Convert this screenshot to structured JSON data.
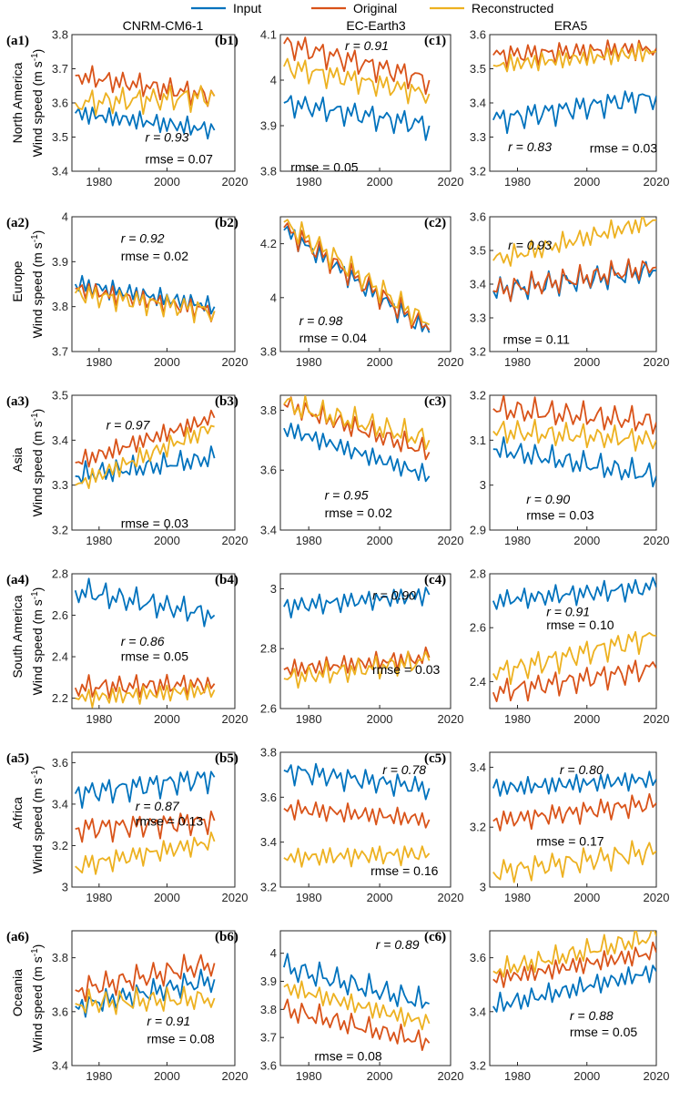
{
  "legend": {
    "items": [
      {
        "name": "Input",
        "color": "#0072BD"
      },
      {
        "name": "Original",
        "color": "#D95319"
      },
      {
        "name": "Reconstructed",
        "color": "#EDB120"
      }
    ]
  },
  "columns": [
    "CNRM-CM6-1",
    "EC-Earth3",
    "ERA5"
  ],
  "rows": [
    "North America",
    "Europe",
    "Asia",
    "South America",
    "Africa",
    "Oceania"
  ],
  "ylabel": "Wind speed (m s",
  "ylabel_sup": "-1",
  "ylabel_close": ")",
  "chart_data": [
    {
      "id": "a1",
      "label": "(a1)",
      "type": "line",
      "xlim": [
        1972,
        2020
      ],
      "ylim": [
        3.4,
        3.8
      ],
      "yticks": [
        "3.4",
        "3.5",
        "3.6",
        "3.7",
        "3.8"
      ],
      "xticks": [
        "1980",
        "2000",
        "2020"
      ],
      "r_text": "r = 0.93",
      "rmse_text": "rmse = 0.07",
      "x": [
        1973,
        2014
      ],
      "series": [
        {
          "name": "Input",
          "values": [
            3.57,
            3.52
          ]
        },
        {
          "name": "Original",
          "values": [
            3.68,
            3.62
          ]
        },
        {
          "name": "Reconstructed",
          "values": [
            3.6,
            3.62
          ]
        }
      ]
    },
    {
      "id": "b1",
      "label": "(b1)",
      "type": "line",
      "xlim": [
        1972,
        2020
      ],
      "ylim": [
        3.8,
        4.1
      ],
      "yticks": [
        "3.8",
        "3.9",
        "4",
        "4.1"
      ],
      "xticks": [
        "1980",
        "2000",
        "2020"
      ],
      "r_text": "r = 0.91",
      "rmse_text": "rmse = 0.05",
      "x": [
        1973,
        2014
      ],
      "series": [
        {
          "name": "Input",
          "values": [
            3.95,
            3.9
          ]
        },
        {
          "name": "Original",
          "values": [
            4.08,
            4.0
          ]
        },
        {
          "name": "Reconstructed",
          "values": [
            4.03,
            3.97
          ]
        }
      ]
    },
    {
      "id": "c1",
      "label": "(c1)",
      "type": "line",
      "xlim": [
        1972,
        2020
      ],
      "ylim": [
        3.2,
        3.6
      ],
      "yticks": [
        "3.2",
        "3.3",
        "3.4",
        "3.5",
        "3.6"
      ],
      "xticks": [
        "1980",
        "2000",
        "2020"
      ],
      "r_text": "r = 0.83",
      "rmse_text": "rmse = 0.03",
      "x": [
        1973,
        2020
      ],
      "series": [
        {
          "name": "Input",
          "values": [
            3.35,
            3.42
          ]
        },
        {
          "name": "Original",
          "values": [
            3.54,
            3.56
          ]
        },
        {
          "name": "Reconstructed",
          "values": [
            3.51,
            3.55
          ]
        }
      ]
    },
    {
      "id": "a2",
      "label": "(a2)",
      "type": "line",
      "xlim": [
        1972,
        2020
      ],
      "ylim": [
        3.7,
        4.0
      ],
      "yticks": [
        "3.7",
        "3.8",
        "3.9",
        "4"
      ],
      "xticks": [
        "1980",
        "2000",
        "2020"
      ],
      "r_text": "r = 0.92",
      "rmse_text": "rmse = 0.02",
      "x": [
        1973,
        2014
      ],
      "series": [
        {
          "name": "Input",
          "values": [
            3.85,
            3.8
          ]
        },
        {
          "name": "Original",
          "values": [
            3.84,
            3.79
          ]
        },
        {
          "name": "Reconstructed",
          "values": [
            3.83,
            3.79
          ]
        }
      ]
    },
    {
      "id": "b2",
      "label": "(b2)",
      "type": "line",
      "xlim": [
        1972,
        2020
      ],
      "ylim": [
        3.8,
        4.3
      ],
      "yticks": [
        "3.8",
        "4",
        "4.2"
      ],
      "xticks": [
        "1980",
        "2000",
        "2020"
      ],
      "r_text": "r = 0.98",
      "rmse_text": "rmse = 0.04",
      "x": [
        1973,
        2014
      ],
      "series": [
        {
          "name": "Input",
          "values": [
            4.25,
            3.87
          ]
        },
        {
          "name": "Original",
          "values": [
            4.26,
            3.88
          ]
        },
        {
          "name": "Reconstructed",
          "values": [
            4.28,
            3.9
          ]
        }
      ]
    },
    {
      "id": "c2",
      "label": "(c2)",
      "type": "line",
      "xlim": [
        1972,
        2020
      ],
      "ylim": [
        3.2,
        3.6
      ],
      "yticks": [
        "3.2",
        "3.3",
        "3.4",
        "3.5",
        "3.6"
      ],
      "xticks": [
        "1980",
        "2000",
        "2020"
      ],
      "r_text": "r = 0.93",
      "rmse_text": "rmse = 0.11",
      "x": [
        1973,
        2020
      ],
      "series": [
        {
          "name": "Input",
          "values": [
            3.38,
            3.44
          ]
        },
        {
          "name": "Original",
          "values": [
            3.38,
            3.45
          ]
        },
        {
          "name": "Reconstructed",
          "values": [
            3.47,
            3.59
          ]
        }
      ]
    },
    {
      "id": "a3",
      "label": "(a3)",
      "type": "line",
      "xlim": [
        1972,
        2020
      ],
      "ylim": [
        3.2,
        3.5
      ],
      "yticks": [
        "3.2",
        "3.3",
        "3.4",
        "3.5"
      ],
      "xticks": [
        "1980",
        "2000",
        "2020"
      ],
      "r_text": "r = 0.97",
      "rmse_text": "rmse = 0.03",
      "x": [
        1973,
        2014
      ],
      "series": [
        {
          "name": "Input",
          "values": [
            3.32,
            3.36
          ]
        },
        {
          "name": "Original",
          "values": [
            3.35,
            3.45
          ]
        },
        {
          "name": "Reconstructed",
          "values": [
            3.3,
            3.43
          ]
        }
      ]
    },
    {
      "id": "b3",
      "label": "(b3)",
      "type": "line",
      "xlim": [
        1972,
        2020
      ],
      "ylim": [
        3.4,
        3.85
      ],
      "yticks": [
        "3.4",
        "3.6",
        "3.8"
      ],
      "xticks": [
        "1980",
        "2000",
        "2020"
      ],
      "r_text": "r = 0.95",
      "rmse_text": "rmse = 0.02",
      "x": [
        1973,
        2014
      ],
      "series": [
        {
          "name": "Input",
          "values": [
            3.74,
            3.58
          ]
        },
        {
          "name": "Original",
          "values": [
            3.82,
            3.66
          ]
        },
        {
          "name": "Reconstructed",
          "values": [
            3.82,
            3.7
          ]
        }
      ]
    },
    {
      "id": "c3",
      "label": "(c3)",
      "type": "line",
      "xlim": [
        1972,
        2020
      ],
      "ylim": [
        2.9,
        3.2
      ],
      "yticks": [
        "2.9",
        "3",
        "3.1",
        "3.2"
      ],
      "xticks": [
        "1980",
        "2000",
        "2020"
      ],
      "r_text": "r = 0.90",
      "rmse_text": "rmse = 0.03",
      "x": [
        1973,
        2020
      ],
      "series": [
        {
          "name": "Input",
          "values": [
            3.08,
            3.02
          ]
        },
        {
          "name": "Original",
          "values": [
            3.17,
            3.14
          ]
        },
        {
          "name": "Reconstructed",
          "values": [
            3.12,
            3.1
          ]
        }
      ]
    },
    {
      "id": "a4",
      "label": "(a4)",
      "type": "line",
      "xlim": [
        1972,
        2020
      ],
      "ylim": [
        2.15,
        2.8
      ],
      "yticks": [
        "2.2",
        "2.4",
        "2.6",
        "2.8"
      ],
      "xticks": [
        "1980",
        "2000",
        "2020"
      ],
      "r_text": "r = 0.86",
      "rmse_text": "rmse = 0.05",
      "x": [
        1973,
        2014
      ],
      "series": [
        {
          "name": "Input",
          "values": [
            2.72,
            2.6
          ]
        },
        {
          "name": "Original",
          "values": [
            2.25,
            2.27
          ]
        },
        {
          "name": "Reconstructed",
          "values": [
            2.2,
            2.24
          ]
        }
      ]
    },
    {
      "id": "b4",
      "label": "(b4)",
      "type": "line",
      "xlim": [
        1972,
        2020
      ],
      "ylim": [
        2.6,
        3.05
      ],
      "yticks": [
        "2.6",
        "2.8",
        "3"
      ],
      "xticks": [
        "1980",
        "2000",
        "2020"
      ],
      "r_text": "r = 0.90",
      "rmse_text": "rmse = 0.03",
      "x": [
        1973,
        2014
      ],
      "series": [
        {
          "name": "Input",
          "values": [
            2.94,
            2.98
          ]
        },
        {
          "name": "Original",
          "values": [
            2.73,
            2.77
          ]
        },
        {
          "name": "Reconstructed",
          "values": [
            2.7,
            2.76
          ]
        }
      ]
    },
    {
      "id": "c4",
      "label": "(c4)",
      "type": "line",
      "xlim": [
        1972,
        2020
      ],
      "ylim": [
        2.3,
        2.8
      ],
      "yticks": [
        "2.4",
        "2.6",
        "2.8"
      ],
      "xticks": [
        "1980",
        "2000",
        "2020"
      ],
      "r_text": "r = 0.91",
      "rmse_text": "rmse = 0.10",
      "x": [
        1973,
        2020
      ],
      "series": [
        {
          "name": "Input",
          "values": [
            2.7,
            2.75
          ]
        },
        {
          "name": "Original",
          "values": [
            2.36,
            2.45
          ]
        },
        {
          "name": "Reconstructed",
          "values": [
            2.43,
            2.57
          ]
        }
      ]
    },
    {
      "id": "a5",
      "label": "(a5)",
      "type": "line",
      "xlim": [
        1972,
        2020
      ],
      "ylim": [
        3.0,
        3.65
      ],
      "yticks": [
        "3",
        "3.2",
        "3.4",
        "3.6"
      ],
      "xticks": [
        "1980",
        "2000",
        "2020"
      ],
      "r_text": "r = 0.87",
      "rmse_text": "rmse = 0.13",
      "x": [
        1973,
        2014
      ],
      "series": [
        {
          "name": "Input",
          "values": [
            3.45,
            3.53
          ]
        },
        {
          "name": "Original",
          "values": [
            3.28,
            3.32
          ]
        },
        {
          "name": "Reconstructed",
          "values": [
            3.1,
            3.22
          ]
        }
      ]
    },
    {
      "id": "b5",
      "label": "(b5)",
      "type": "line",
      "xlim": [
        1972,
        2020
      ],
      "ylim": [
        3.2,
        3.8
      ],
      "yticks": [
        "3.2",
        "3.4",
        "3.6",
        "3.8"
      ],
      "xticks": [
        "1980",
        "2000",
        "2020"
      ],
      "r_text": "r = 0.78",
      "rmse_text": "rmse = 0.16",
      "x": [
        1973,
        2014
      ],
      "series": [
        {
          "name": "Input",
          "values": [
            3.72,
            3.64
          ]
        },
        {
          "name": "Original",
          "values": [
            3.55,
            3.5
          ]
        },
        {
          "name": "Reconstructed",
          "values": [
            3.33,
            3.35
          ]
        }
      ]
    },
    {
      "id": "c5",
      "label": "(c5)",
      "type": "line",
      "xlim": [
        1972,
        2020
      ],
      "ylim": [
        3.0,
        3.45
      ],
      "yticks": [
        "3",
        "3.2",
        "3.4"
      ],
      "xticks": [
        "1980",
        "2000",
        "2020"
      ],
      "r_text": "r = 0.80",
      "rmse_text": "rmse = 0.17",
      "x": [
        1973,
        2020
      ],
      "series": [
        {
          "name": "Input",
          "values": [
            3.33,
            3.36
          ]
        },
        {
          "name": "Original",
          "values": [
            3.22,
            3.28
          ]
        },
        {
          "name": "Reconstructed",
          "values": [
            3.05,
            3.12
          ]
        }
      ]
    },
    {
      "id": "a6",
      "label": "(a6)",
      "type": "line",
      "xlim": [
        1972,
        2020
      ],
      "ylim": [
        3.4,
        3.9
      ],
      "yticks": [
        "3.4",
        "3.6",
        "3.8"
      ],
      "xticks": [
        "1980",
        "2000",
        "2020"
      ],
      "r_text": "r = 0.91",
      "rmse_text": "rmse = 0.08",
      "x": [
        1973,
        2014
      ],
      "series": [
        {
          "name": "Input",
          "values": [
            3.62,
            3.72
          ]
        },
        {
          "name": "Original",
          "values": [
            3.68,
            3.78
          ]
        },
        {
          "name": "Reconstructed",
          "values": [
            3.63,
            3.65
          ]
        }
      ]
    },
    {
      "id": "b6",
      "label": "(b6)",
      "type": "line",
      "xlim": [
        1972,
        2020
      ],
      "ylim": [
        3.6,
        4.08
      ],
      "yticks": [
        "3.6",
        "3.7",
        "3.8",
        "3.9",
        "4"
      ],
      "xticks": [
        "1980",
        "2000",
        "2020"
      ],
      "r_text": "r = 0.89",
      "rmse_text": "rmse = 0.08",
      "x": [
        1973,
        2014
      ],
      "series": [
        {
          "name": "Input",
          "values": [
            3.95,
            3.82
          ]
        },
        {
          "name": "Original",
          "values": [
            3.8,
            3.68
          ]
        },
        {
          "name": "Reconstructed",
          "values": [
            3.88,
            3.75
          ]
        }
      ]
    },
    {
      "id": "c6",
      "label": "(c6)",
      "type": "line",
      "xlim": [
        1972,
        2020
      ],
      "ylim": [
        3.2,
        3.7
      ],
      "yticks": [
        "3.2",
        "3.4",
        "3.6"
      ],
      "xticks": [
        "1980",
        "2000",
        "2020"
      ],
      "r_text": "r = 0.88",
      "rmse_text": "rmse = 0.05",
      "x": [
        1973,
        2020
      ],
      "series": [
        {
          "name": "Input",
          "values": [
            3.42,
            3.55
          ]
        },
        {
          "name": "Original",
          "values": [
            3.52,
            3.62
          ]
        },
        {
          "name": "Reconstructed",
          "values": [
            3.55,
            3.68
          ]
        }
      ]
    }
  ]
}
